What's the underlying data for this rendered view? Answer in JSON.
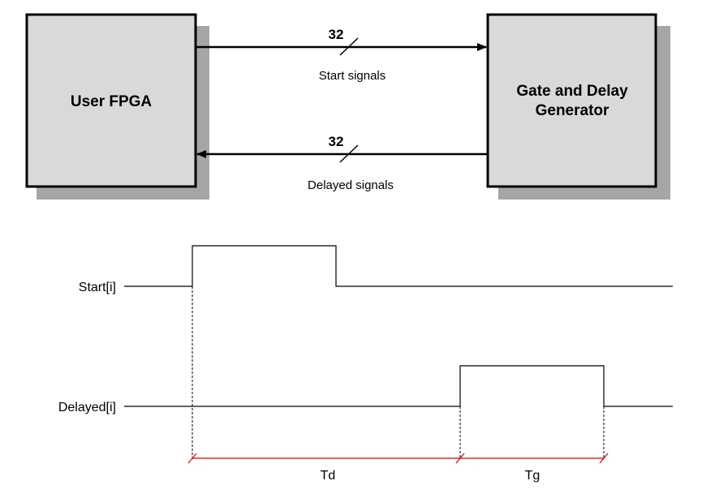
{
  "blocks": {
    "left": {
      "label": "User FPGA"
    },
    "right": {
      "line1": "Gate and Delay",
      "line2": "Generator"
    }
  },
  "buses": {
    "top": {
      "width": "32",
      "label": "Start signals"
    },
    "bottom": {
      "width": "32",
      "label": "Delayed signals"
    }
  },
  "timing": {
    "start_label": "Start[i]",
    "delayed_label": "Delayed[i]",
    "td_label": "Td",
    "tg_label": "Tg"
  },
  "colors": {
    "block_fill": "#d9d9d9",
    "block_shadow": "#a6a6a6",
    "measure_line": "#e00000"
  }
}
